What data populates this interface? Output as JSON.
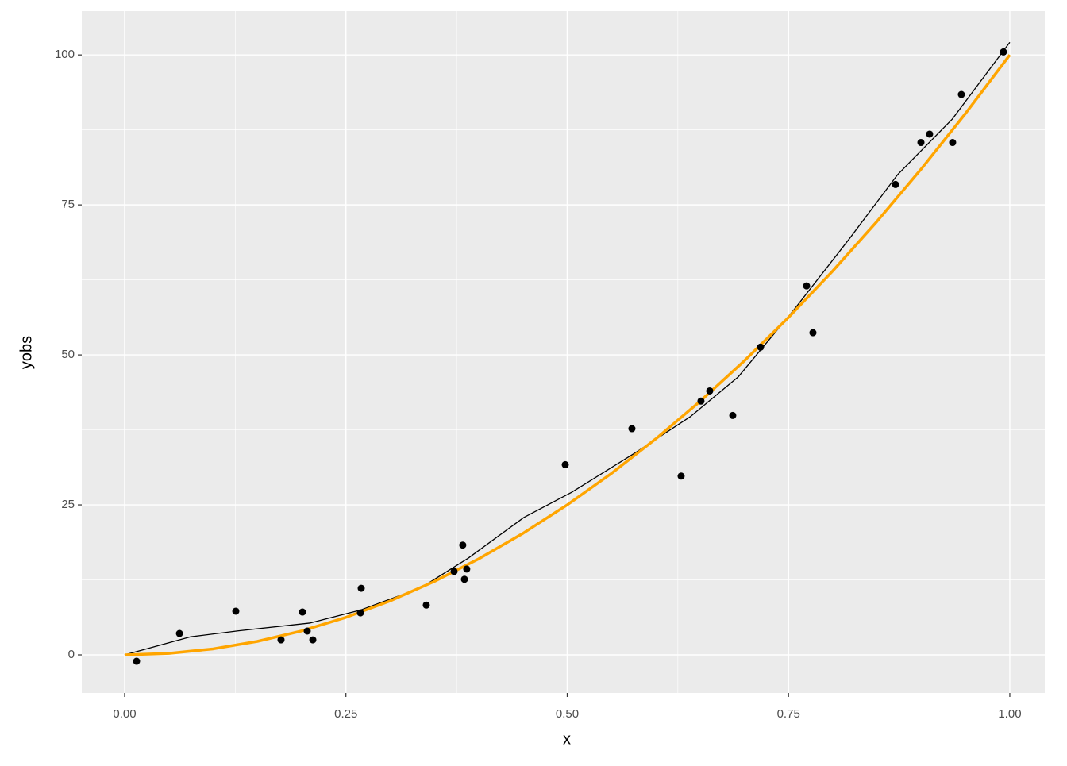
{
  "chart_data": {
    "type": "scatter",
    "x_label": "x",
    "y_label": "yobs",
    "xlim": [
      -0.0484,
      1.0395
    ],
    "ylim": [
      -6.35,
      107.3
    ],
    "xticks": [
      {
        "value": 0,
        "label": "0.00"
      },
      {
        "value": 0.25,
        "label": "0.25"
      },
      {
        "value": 0.5,
        "label": "0.50"
      },
      {
        "value": 0.75,
        "label": "0.75"
      },
      {
        "value": 1,
        "label": "1.00"
      }
    ],
    "yticks": [
      0,
      25,
      50,
      75,
      100
    ],
    "grid": true,
    "points": {
      "color": "#000000",
      "x": [
        0.0135,
        0.062,
        0.1256,
        0.1767,
        0.2009,
        0.2063,
        0.2126,
        0.2673,
        0.2664,
        0.3408,
        0.3722,
        0.382,
        0.3839,
        0.3865,
        0.4978,
        0.5731,
        0.6287,
        0.6511,
        0.661,
        0.687,
        0.7184,
        0.7704,
        0.7776,
        0.8709,
        0.8996,
        0.9094,
        0.9354,
        0.9453,
        0.9928
      ],
      "values": [
        -1.06,
        3.57,
        7.28,
        2.5,
        7.14,
        3.97,
        2.5,
        11.1,
        7.0,
        8.3,
        13.9,
        18.3,
        12.6,
        14.3,
        31.7,
        37.7,
        29.8,
        42.3,
        44.0,
        39.9,
        51.3,
        61.5,
        53.7,
        78.4,
        85.4,
        86.8,
        85.4,
        93.4,
        100.5
      ]
    },
    "series": [
      {
        "color": "#000000",
        "width": 1.3,
        "x": [
          0,
          0.074,
          0.128,
          0.209,
          0.267,
          0.335,
          0.388,
          0.451,
          0.505,
          0.577,
          0.639,
          0.693,
          0.756,
          0.819,
          0.873,
          0.935,
          1
        ],
        "values": [
          0,
          3,
          4.0,
          5.3,
          7.5,
          11.2,
          16.1,
          22.9,
          27.1,
          33.7,
          39.7,
          46.3,
          57.5,
          69.4,
          80,
          89.3,
          102.1
        ]
      },
      {
        "color": "#FFA500",
        "width": 3.5,
        "x": [
          0,
          0.05,
          0.1,
          0.15,
          0.2,
          0.25,
          0.3,
          0.35,
          0.4,
          0.45,
          0.5,
          0.55,
          0.6,
          0.65,
          0.7,
          0.75,
          0.8,
          0.85,
          0.9,
          0.95,
          1
        ],
        "values": [
          0,
          0.25,
          1,
          2.25,
          4,
          6.25,
          9,
          12.25,
          16,
          20.25,
          25,
          30.25,
          36,
          42.25,
          49,
          56.25,
          64,
          72.25,
          81,
          90.25,
          100
        ]
      }
    ]
  }
}
